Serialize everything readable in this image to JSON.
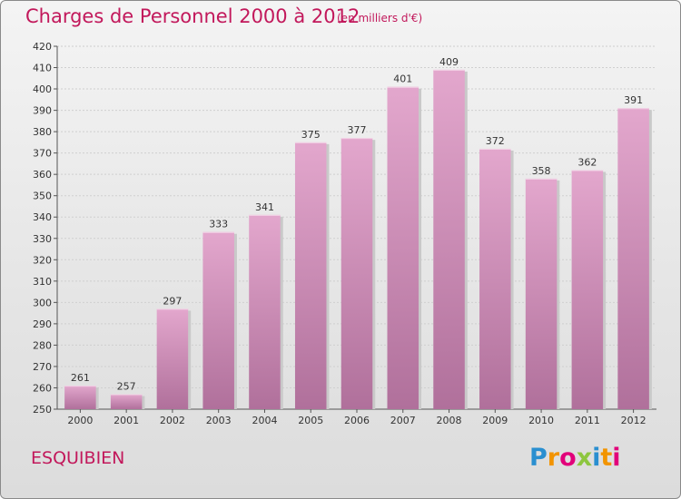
{
  "title": "Charges de Personnel 2000 à 2012",
  "subtitle": "(en milliers d'€)",
  "commune": "ESQUIBIEN",
  "logo": {
    "letters": [
      {
        "ch": "P",
        "color": "#2a8fd0"
      },
      {
        "ch": "r",
        "color": "#f29400"
      },
      {
        "ch": "o",
        "color": "#e2007a"
      },
      {
        "ch": "x",
        "color": "#8dc63f"
      },
      {
        "ch": "i",
        "color": "#2a8fd0"
      },
      {
        "ch": "t",
        "color": "#f29400"
      },
      {
        "ch": "i",
        "color": "#e2007a"
      }
    ]
  },
  "colors": {
    "bar_top": "#e3a7cd",
    "bar_bottom": "#b0709b",
    "title": "#c2185b"
  },
  "chart_data": {
    "type": "bar",
    "title": "Charges de Personnel 2000 à 2012",
    "subtitle": "(en milliers d'€)",
    "categories": [
      "2000",
      "2001",
      "2002",
      "2003",
      "2004",
      "2005",
      "2006",
      "2007",
      "2008",
      "2009",
      "2010",
      "2011",
      "2012"
    ],
    "values": [
      261,
      257,
      297,
      333,
      341,
      375,
      377,
      401,
      409,
      372,
      358,
      362,
      391
    ],
    "ylim": [
      250,
      420
    ],
    "yticks": [
      250,
      260,
      270,
      280,
      290,
      300,
      310,
      320,
      330,
      340,
      350,
      360,
      370,
      380,
      390,
      400,
      410,
      420
    ],
    "grid": true,
    "xlabel": "",
    "ylabel": ""
  }
}
